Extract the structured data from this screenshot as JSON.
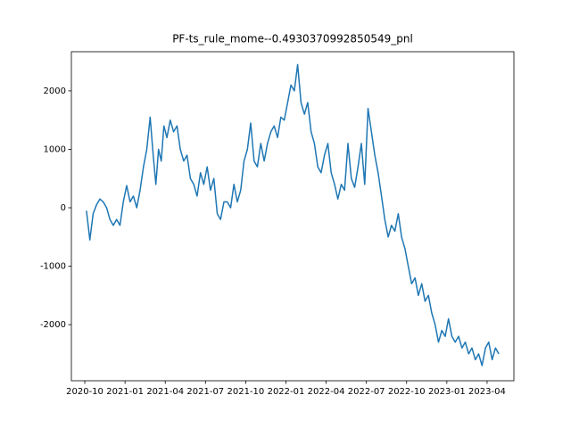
{
  "chart_data": {
    "type": "line",
    "title": "PF-ts_rule_mome--0.4930370992850549_pnl",
    "color": "#1f77b4",
    "x": [
      "2020-10",
      "2020-10",
      "2020-10",
      "2020-10",
      "2020-11",
      "2020-11",
      "2020-11",
      "2020-11",
      "2020-12",
      "2020-12",
      "2020-12",
      "2020-12",
      "2021-01",
      "2021-01",
      "2021-01",
      "2021-01",
      "2021-02",
      "2021-02",
      "2021-02",
      "2021-02",
      "2021-03",
      "2021-03",
      "2021-03",
      "2021-03",
      "2021-03",
      "2021-04",
      "2021-04",
      "2021-04",
      "2021-04",
      "2021-05",
      "2021-05",
      "2021-05",
      "2021-05",
      "2021-06",
      "2021-06",
      "2021-06",
      "2021-06",
      "2021-07",
      "2021-07",
      "2021-07",
      "2021-07",
      "2021-08",
      "2021-08",
      "2021-08",
      "2021-08",
      "2021-09",
      "2021-09",
      "2021-09",
      "2021-09",
      "2021-10",
      "2021-10",
      "2021-10",
      "2021-10",
      "2021-11",
      "2021-11",
      "2021-11",
      "2021-11",
      "2021-12",
      "2021-12",
      "2021-12",
      "2021-12",
      "2022-01",
      "2022-01",
      "2022-01",
      "2022-01",
      "2022-02",
      "2022-02",
      "2022-02",
      "2022-02",
      "2022-03",
      "2022-03",
      "2022-03",
      "2022-03",
      "2022-04",
      "2022-04",
      "2022-04",
      "2022-04",
      "2022-05",
      "2022-05",
      "2022-05",
      "2022-05",
      "2022-06",
      "2022-06",
      "2022-06",
      "2022-06",
      "2022-07",
      "2022-07",
      "2022-07",
      "2022-07",
      "2022-08",
      "2022-08",
      "2022-08",
      "2022-08",
      "2022-09",
      "2022-09",
      "2022-09",
      "2022-09",
      "2022-10",
      "2022-10",
      "2022-10",
      "2022-10",
      "2022-11",
      "2022-11",
      "2022-11",
      "2022-11",
      "2022-12",
      "2022-12",
      "2022-12",
      "2022-12",
      "2023-01",
      "2023-01",
      "2023-01",
      "2023-01",
      "2023-02",
      "2023-02",
      "2023-02",
      "2023-02",
      "2023-03",
      "2023-03",
      "2023-03",
      "2023-03",
      "2023-04",
      "2023-04",
      "2023-04",
      "2023-04"
    ],
    "values": [
      -50,
      -550,
      -100,
      50,
      150,
      100,
      0,
      -200,
      -300,
      -200,
      -300,
      100,
      380,
      100,
      200,
      0,
      300,
      700,
      1000,
      1550,
      900,
      400,
      1000,
      800,
      1400,
      1200,
      1500,
      1300,
      1400,
      1000,
      800,
      900,
      500,
      400,
      200,
      600,
      400,
      700,
      300,
      500,
      -100,
      -200,
      100,
      100,
      0,
      400,
      100,
      300,
      800,
      1000,
      1450,
      800,
      700,
      1100,
      800,
      1100,
      1300,
      1400,
      1200,
      1550,
      1500,
      1800,
      2100,
      2000,
      2450,
      1800,
      1600,
      1800,
      1300,
      1100,
      700,
      600,
      900,
      1100,
      600,
      400,
      150,
      400,
      300,
      1100,
      500,
      350,
      700,
      1100,
      400,
      1700,
      1300,
      900,
      600,
      200,
      -200,
      -500,
      -300,
      -400,
      -100,
      -500,
      -700,
      -1000,
      -1300,
      -1200,
      -1500,
      -1300,
      -1600,
      -1500,
      -1800,
      -2000,
      -2300,
      -2100,
      -2200,
      -1900,
      -2200,
      -2300,
      -2200,
      -2400,
      -2300,
      -2500,
      -2400,
      -2600,
      -2500,
      -2700,
      -2400,
      -2300,
      -2600,
      -2400,
      -2500
    ],
    "xlim": [
      "2020-09",
      "2023-06"
    ],
    "xticks": [
      "2020-10",
      "2021-01",
      "2021-04",
      "2021-07",
      "2021-10",
      "2022-01",
      "2022-04",
      "2022-07",
      "2022-10",
      "2023-01",
      "2023-04"
    ],
    "ylim": [
      -2960,
      2670
    ],
    "yticks": [
      -2000,
      -1000,
      0,
      1000,
      2000
    ]
  }
}
